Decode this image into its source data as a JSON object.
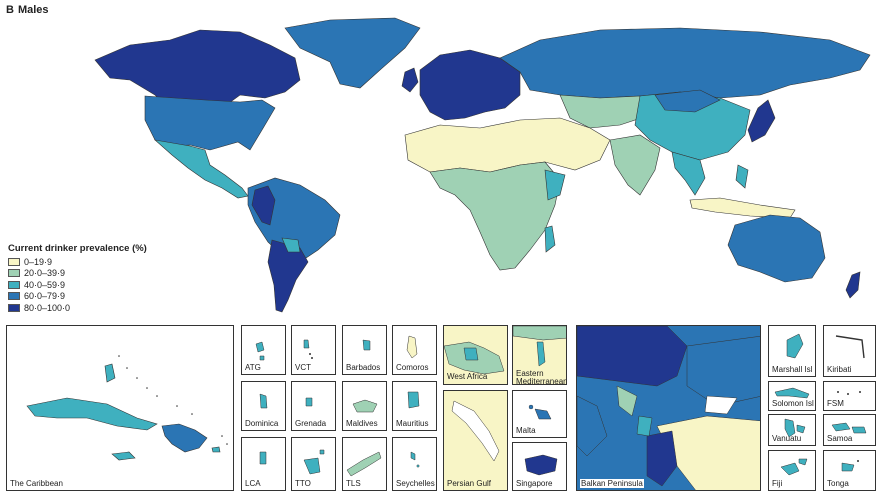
{
  "panel": {
    "letter": "B",
    "title": "Males"
  },
  "legend": {
    "title": "Current drinker prevalence (%)",
    "items": [
      {
        "label": "0–19·9",
        "color": "#f8f5c6"
      },
      {
        "label": "20·0–39·9",
        "color": "#9fd1b4"
      },
      {
        "label": "40·0–59·9",
        "color": "#3fb0bf"
      },
      {
        "label": "60·0–79·9",
        "color": "#2b75b4"
      },
      {
        "label": "80·0–100·0",
        "color": "#21378f"
      }
    ]
  },
  "insets": {
    "caribbean": "The Caribbean",
    "atg": "ATG",
    "vct": "VCT",
    "barbados": "Barbados",
    "comoros": "Comoros",
    "dominica": "Dominica",
    "grenada": "Grenada",
    "maldives": "Maldives",
    "mauritius": "Mauritius",
    "lca": "LCA",
    "tto": "TTO",
    "tls": "TLS",
    "seychelles": "Seychelles",
    "west_africa": "West Africa",
    "eastern_med": "Eastern Mediterranean",
    "persian_gulf": "Persian Gulf",
    "malta": "Malta",
    "singapore": "Singapore",
    "balkan": "Balkan Peninsula",
    "marshall": "Marshall Isl",
    "kiribati": "Kiribati",
    "solomon": "Solomon Isl",
    "fsm": "FSM",
    "vanuatu": "Vanuatu",
    "samoa": "Samoa",
    "fiji": "Fiji",
    "tonga": "Tonga"
  }
}
